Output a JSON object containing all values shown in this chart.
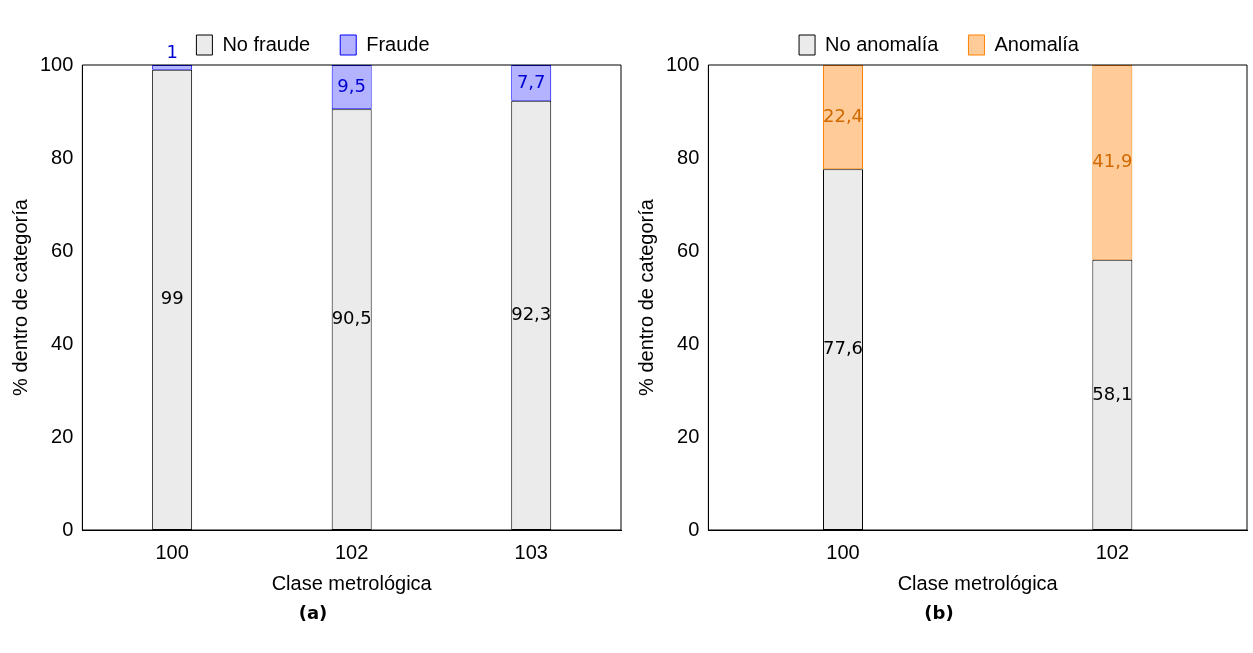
{
  "chart_data": [
    {
      "type": "bar",
      "stacked": true,
      "categories": [
        "100",
        "102",
        "103"
      ],
      "series": [
        {
          "name": "No fraude",
          "color": "#ebebeb",
          "values": [
            99,
            90.5,
            92.3
          ],
          "value_labels": [
            "99",
            "90,5",
            "92,3"
          ]
        },
        {
          "name": "Fraude",
          "color": "#b3b3ff",
          "values": [
            1,
            9.5,
            7.7
          ],
          "value_labels": [
            "1",
            "9,5",
            "7,7"
          ]
        }
      ],
      "ylim": [
        0,
        100
      ],
      "yticks": [
        0,
        20,
        40,
        60,
        80,
        100
      ],
      "xlabel": "Clase metrológica",
      "ylabel": "% dentro de categoría",
      "legend": "top",
      "annotations": [
        "(a)"
      ]
    },
    {
      "type": "bar",
      "stacked": true,
      "categories": [
        "100",
        "102"
      ],
      "series": [
        {
          "name": "No anomalía",
          "color": "#ebebeb",
          "values": [
            77.6,
            58.1
          ],
          "value_labels": [
            "77,6",
            "58,1"
          ]
        },
        {
          "name": "Anomalía",
          "color": "#ffcc99",
          "values": [
            22.4,
            41.9
          ],
          "value_labels": [
            "22,4",
            "41,9"
          ]
        }
      ],
      "ylim": [
        0,
        100
      ],
      "yticks": [
        0,
        20,
        40,
        60,
        80,
        100
      ],
      "xlabel": "Clase metrológica",
      "ylabel": "% dentro de categoría",
      "legend": "top",
      "annotations": [
        "(b)"
      ]
    }
  ]
}
